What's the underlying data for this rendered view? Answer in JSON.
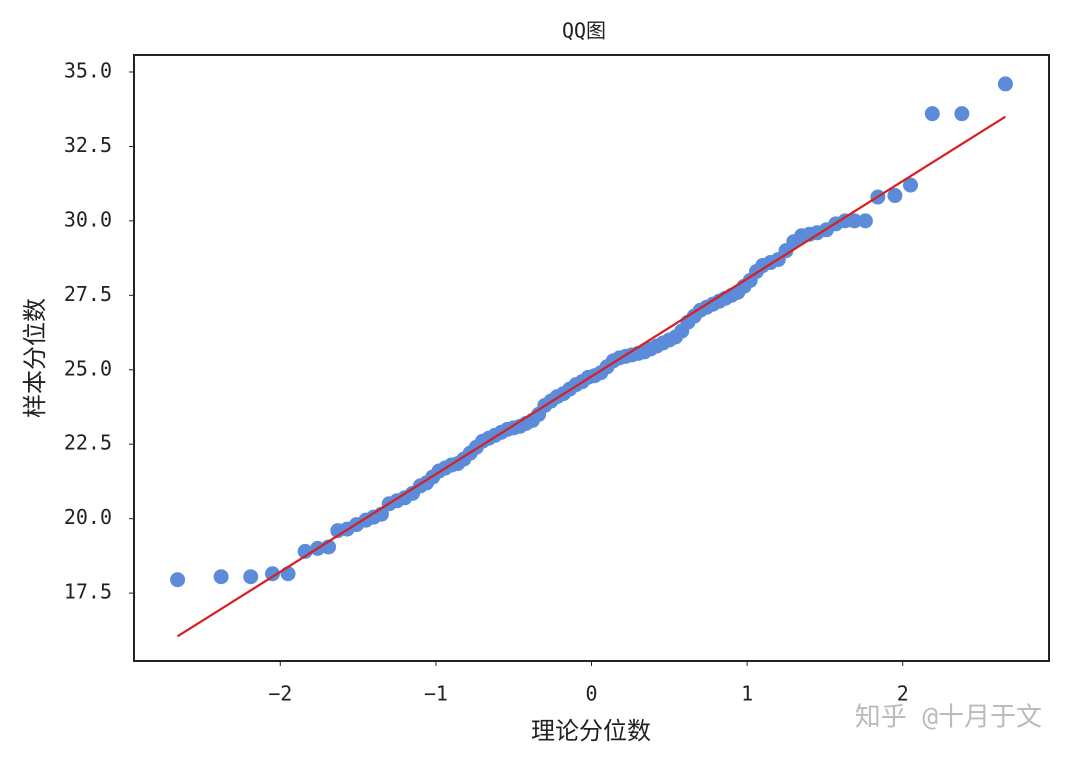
{
  "chart_data": {
    "type": "scatter",
    "title": "QQ图",
    "x_label": "理论分位数",
    "y_label": "样本分位数",
    "xlim": [
      -2.94,
      2.94
    ],
    "ylim": [
      15.22,
      35.57
    ],
    "xticks": [
      {
        "value": -2,
        "label": "−2"
      },
      {
        "value": -1,
        "label": "−1"
      },
      0,
      1,
      2
    ],
    "yticks": [
      17.5,
      {
        "value": 20,
        "label": "20.0"
      },
      22.5,
      {
        "value": 25,
        "label": "25.0"
      },
      27.5,
      {
        "value": 30,
        "label": "30.0"
      },
      32.5,
      {
        "value": 35,
        "label": "35.0"
      }
    ],
    "series": [
      {
        "type": "scatter",
        "color": "#5b8bd9",
        "x": [
          -2.66,
          -2.38,
          -2.19,
          -2.05,
          -1.95,
          -1.84,
          -1.76,
          -1.69,
          -1.63,
          -1.57,
          -1.51,
          -1.45,
          -1.4,
          -1.35,
          -1.3,
          -1.25,
          -1.2,
          -1.15,
          -1.1,
          -1.06,
          -1.02,
          -0.98,
          -0.94,
          -0.9,
          -0.86,
          -0.82,
          -0.78,
          -0.74,
          -0.7,
          -0.66,
          -0.62,
          -0.58,
          -0.54,
          -0.5,
          -0.46,
          -0.42,
          -0.38,
          -0.34,
          -0.3,
          -0.26,
          -0.22,
          -0.18,
          -0.14,
          -0.1,
          -0.06,
          -0.02,
          0.02,
          0.06,
          0.1,
          0.14,
          0.18,
          0.22,
          0.26,
          0.3,
          0.34,
          0.38,
          0.42,
          0.46,
          0.5,
          0.54,
          0.58,
          0.62,
          0.66,
          0.7,
          0.74,
          0.78,
          0.82,
          0.86,
          0.9,
          0.94,
          0.98,
          1.02,
          1.06,
          1.1,
          1.15,
          1.2,
          1.25,
          1.3,
          1.35,
          1.4,
          1.45,
          1.51,
          1.57,
          1.63,
          1.69,
          1.76,
          1.84,
          1.95,
          2.05,
          2.19,
          2.38,
          2.66
        ],
        "values": [
          17.95,
          18.05,
          18.05,
          18.15,
          18.15,
          18.9,
          19.0,
          19.05,
          19.6,
          19.65,
          19.8,
          19.95,
          20.05,
          20.15,
          20.5,
          20.6,
          20.7,
          20.85,
          21.1,
          21.2,
          21.4,
          21.6,
          21.7,
          21.8,
          21.85,
          22.0,
          22.2,
          22.4,
          22.6,
          22.7,
          22.8,
          22.9,
          23.0,
          23.05,
          23.1,
          23.2,
          23.3,
          23.5,
          23.8,
          23.95,
          24.1,
          24.2,
          24.35,
          24.5,
          24.6,
          24.75,
          24.8,
          24.9,
          25.1,
          25.3,
          25.4,
          25.45,
          25.5,
          25.55,
          25.6,
          25.7,
          25.8,
          25.9,
          26.0,
          26.1,
          26.3,
          26.6,
          26.8,
          27.0,
          27.1,
          27.2,
          27.3,
          27.4,
          27.5,
          27.6,
          27.8,
          28.0,
          28.3,
          28.5,
          28.6,
          28.7,
          29.0,
          29.3,
          29.5,
          29.55,
          29.6,
          29.7,
          29.9,
          30.0,
          30.0,
          30.0,
          30.8,
          30.85,
          31.2,
          33.6,
          33.6,
          34.6
        ]
      },
      {
        "type": "line",
        "color": "#d81e1e",
        "x": [
          -2.66,
          2.66
        ],
        "values": [
          16.05,
          33.5
        ]
      }
    ],
    "watermark": "知乎 @十月于文"
  }
}
